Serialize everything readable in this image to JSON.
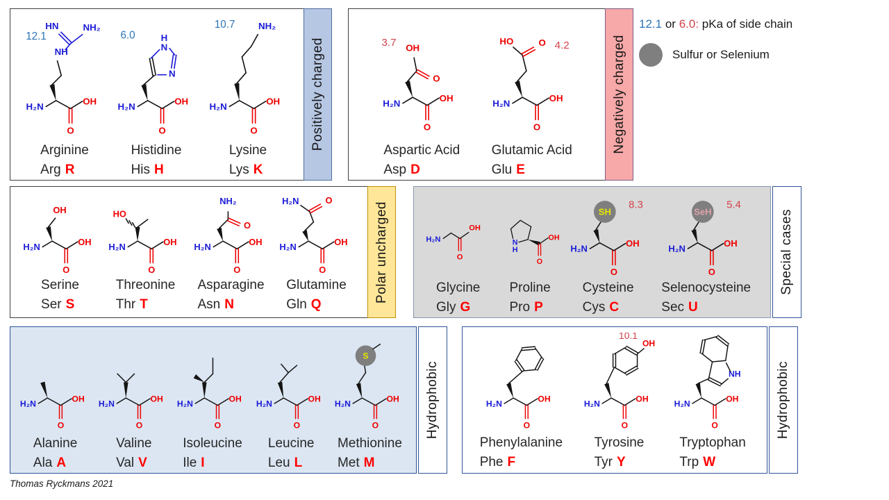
{
  "palette": {
    "bond": "#141414",
    "atom_blue": "#1b1bd6",
    "atom_red": "#ee0000",
    "pka_blue": "#2e75b6",
    "pka_red": "#d2424b",
    "letter_red": "#ff0000",
    "circle_gray": "#7f7f7f",
    "sulfur_yellow": "#e8e800",
    "selenium_pink": "#dfa3ad",
    "positive_strip": "#b6c7e3",
    "negative_strip": "#f7a8a8",
    "polar_strip": "#ffe699",
    "special_bg": "#d9d9d9",
    "hydrophobic_bg": "#dce6f2"
  },
  "atoms": {
    "h2n": "H₂N",
    "nh2": "NH₂",
    "oh": "OH",
    "ho": "HO",
    "o": "O",
    "n": "N",
    "h": "H",
    "nh": "NH",
    "hn": "HN",
    "sh": "SH",
    "seh": "SeH",
    "s": "S"
  },
  "legend": {
    "pka_blue": "12.1",
    "or_word": "or",
    "pka_red": "6.0:",
    "pka_desc": "pKa of side chain",
    "circle_label": "Sulfur or Selenium"
  },
  "groups": [
    {
      "id": "positive",
      "label": "Positively charged",
      "acids": [
        {
          "id": "arg",
          "name": "Arginine",
          "abbr": "Arg",
          "letter": "R",
          "pka": "12.1",
          "pka_color": "blue"
        },
        {
          "id": "his",
          "name": "Histidine",
          "abbr": "His",
          "letter": "H",
          "pka": "6.0",
          "pka_color": "blue"
        },
        {
          "id": "lys",
          "name": "Lysine",
          "abbr": "Lys",
          "letter": "K",
          "pka": "10.7",
          "pka_color": "blue"
        }
      ]
    },
    {
      "id": "negative",
      "label": "Negatively charged",
      "acids": [
        {
          "id": "asp",
          "name": "Aspartic Acid",
          "abbr": "Asp",
          "letter": "D",
          "pka": "3.7",
          "pka_color": "red"
        },
        {
          "id": "glu",
          "name": "Glutamic Acid",
          "abbr": "Glu",
          "letter": "E",
          "pka": "4.2",
          "pka_color": "red"
        }
      ]
    },
    {
      "id": "polar",
      "label": "Polar uncharged",
      "acids": [
        {
          "id": "ser",
          "name": "Serine",
          "abbr": "Ser",
          "letter": "S"
        },
        {
          "id": "thr",
          "name": "Threonine",
          "abbr": "Thr",
          "letter": "T"
        },
        {
          "id": "asn",
          "name": "Asparagine",
          "abbr": "Asn",
          "letter": "N"
        },
        {
          "id": "gln",
          "name": "Glutamine",
          "abbr": "Gln",
          "letter": "Q"
        }
      ]
    },
    {
      "id": "special",
      "label": "Special cases",
      "acids": [
        {
          "id": "gly",
          "name": "Glycine",
          "abbr": "Gly",
          "letter": "G"
        },
        {
          "id": "pro",
          "name": "Proline",
          "abbr": "Pro",
          "letter": "P"
        },
        {
          "id": "cys",
          "name": "Cysteine",
          "abbr": "Cys",
          "letter": "C",
          "pka": "8.3",
          "pka_color": "red"
        },
        {
          "id": "sec",
          "name": "Selenocysteine",
          "abbr": "Sec",
          "letter": "U",
          "pka": "5.4",
          "pka_color": "red"
        }
      ]
    },
    {
      "id": "hydrophobic1",
      "label": "Hydrophobic",
      "acids": [
        {
          "id": "ala",
          "name": "Alanine",
          "abbr": "Ala",
          "letter": "A"
        },
        {
          "id": "val",
          "name": "Valine",
          "abbr": "Val",
          "letter": "V"
        },
        {
          "id": "ile",
          "name": "Isoleucine",
          "abbr": "Ile",
          "letter": "I"
        },
        {
          "id": "leu",
          "name": "Leucine",
          "abbr": "Leu",
          "letter": "L"
        },
        {
          "id": "met",
          "name": "Methionine",
          "abbr": "Met",
          "letter": "M"
        }
      ]
    },
    {
      "id": "hydrophobic2",
      "label": "Hydrophobic",
      "acids": [
        {
          "id": "phe",
          "name": "Phenylalanine",
          "abbr": "Phe",
          "letter": "F"
        },
        {
          "id": "tyr",
          "name": "Tyrosine",
          "abbr": "Tyr",
          "letter": "Y",
          "pka": "10.1",
          "pka_color": "red"
        },
        {
          "id": "trp",
          "name": "Tryptophan",
          "abbr": "Trp",
          "letter": "W"
        }
      ]
    }
  ],
  "footer": "Thomas Ryckmans 2021"
}
